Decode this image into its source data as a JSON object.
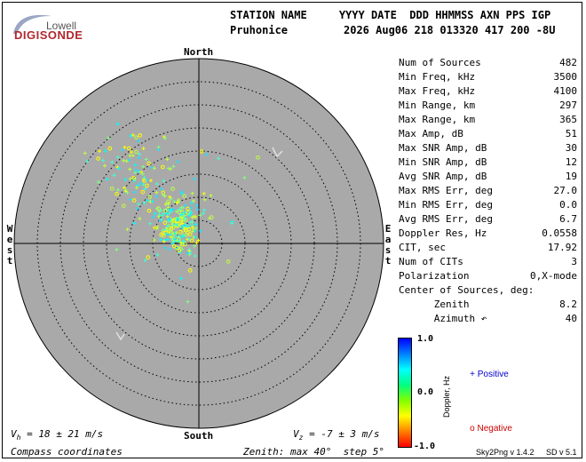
{
  "logo": {
    "lowell": "Lowell",
    "digisonde": "DIGISONDE"
  },
  "header": {
    "line1": "STATION NAME     YYYY DATE  DDD HHMMSS AXN PPS IGP",
    "station": "Pruhonice",
    "line2": "2026 Aug06 218 013320 417 200 -8U"
  },
  "compass": {
    "north": "North",
    "south": "South",
    "east": [
      "E",
      "a",
      "s",
      "t"
    ],
    "west": [
      "W",
      "e",
      "s",
      "t"
    ]
  },
  "stats": [
    {
      "label": "Num of Sources",
      "value": "482"
    },
    {
      "label": "Min Freq, kHz",
      "value": "3500"
    },
    {
      "label": "Max Freq, kHz",
      "value": "4100"
    },
    {
      "label": "Min Range, km",
      "value": "297"
    },
    {
      "label": "Max Range, km",
      "value": "365"
    },
    {
      "label": "Max Amp, dB",
      "value": "51"
    },
    {
      "label": "Max SNR Amp, dB",
      "value": "30"
    },
    {
      "label": "Min SNR Amp, dB",
      "value": "12"
    },
    {
      "label": "Avg SNR Amp, dB",
      "value": "19"
    },
    {
      "label": "Max RMS Err, deg",
      "value": "27.0"
    },
    {
      "label": "Min RMS Err, deg",
      "value": "0.0"
    },
    {
      "label": "Avg RMS Err, deg",
      "value": "6.7"
    },
    {
      "label": "Doppler Res, Hz",
      "value": "0.0558"
    },
    {
      "label": "CIT, sec",
      "value": "17.92"
    },
    {
      "label": "Num of CITs",
      "value": "3"
    },
    {
      "label": "Polarization",
      "value": "0,X-mode"
    },
    {
      "label": "Center of Sources, deg:",
      "value": ""
    },
    {
      "label": "      Zenith",
      "value": "8.2"
    },
    {
      "label": "      Azimuth ↶",
      "value": "40"
    }
  ],
  "colorbar": {
    "top": "1.0",
    "mid": "0.0",
    "bottom": "-1.0",
    "label": "Doppler, Hz",
    "colors": [
      "#0000ff",
      "#0080ff",
      "#00ffff",
      "#00ff80",
      "#80ff00",
      "#ffff00",
      "#ff8000",
      "#ff0000"
    ]
  },
  "legend": {
    "positive_symbol": "+",
    "positive": "Positive",
    "negative_symbol": "o",
    "negative": "Negative",
    "positive_color": "#0000cc",
    "negative_color": "#cc0000"
  },
  "footer": {
    "vh_prefix": "V",
    "vh_sub": "h",
    "vh_text": " = 18 ± 21 m/s",
    "vz_prefix": "V",
    "vz_sub": "z",
    "vz_text": " = -7 ± 3 m/s",
    "coords": "Compass coordinates",
    "zenith": "Zenith: max 40°  step 5°",
    "version1": "Sky2Png v 1.4.2",
    "version2": "SD v 5.1"
  },
  "skymap": {
    "max_zenith_deg": 40,
    "step_deg": 5,
    "disc_color": "#a9a9a9",
    "grid_color": "#000000"
  }
}
